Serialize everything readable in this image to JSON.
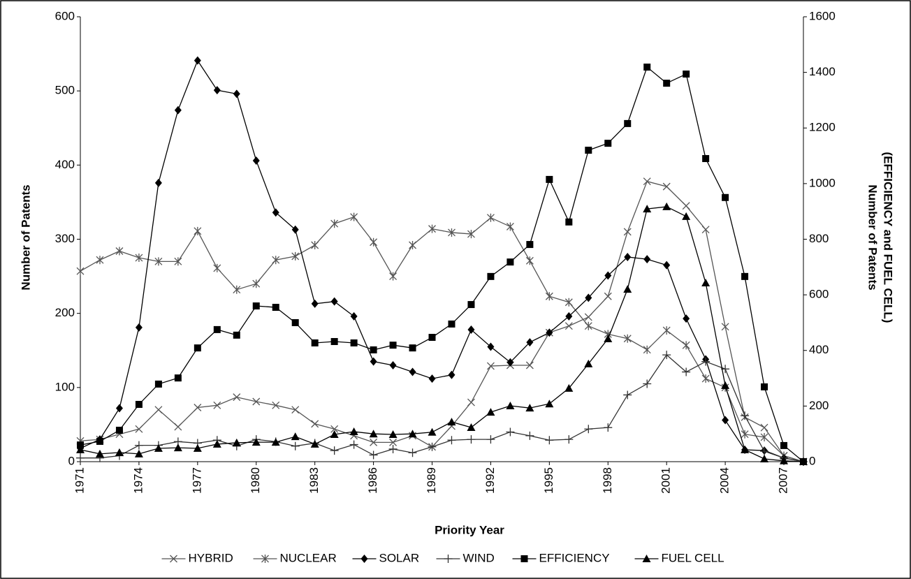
{
  "chart_data": {
    "type": "line",
    "xlabel": "Priority Year",
    "ylabel": "Number of Patents",
    "y2label": [
      "Number of Patents",
      "(EFFICIENCY and FUEL CELL)"
    ],
    "x": [
      1971,
      1972,
      1973,
      1974,
      1975,
      1976,
      1977,
      1978,
      1979,
      1980,
      1981,
      1982,
      1983,
      1984,
      1985,
      1986,
      1987,
      1988,
      1989,
      1990,
      1991,
      1992,
      1993,
      1994,
      1995,
      1996,
      1997,
      1998,
      1999,
      2000,
      2001,
      2002,
      2003,
      2004,
      2005,
      2006,
      2007,
      2008
    ],
    "xlim": [
      1971,
      2008
    ],
    "xticks": [
      1971,
      1974,
      1977,
      1980,
      1983,
      1986,
      1989,
      1992,
      1995,
      1998,
      2001,
      2004,
      2007
    ],
    "ylim": [
      0,
      600
    ],
    "yticks": [
      0,
      100,
      200,
      300,
      400,
      500,
      600
    ],
    "y2lim": [
      0,
      1600
    ],
    "y2ticks": [
      0,
      200,
      400,
      600,
      800,
      1000,
      1200,
      1400,
      1600
    ],
    "legend": "bottom",
    "series": [
      {
        "name": "HYBRID",
        "color": "#555555",
        "marker": "x",
        "values": [
          28,
          30,
          37,
          44,
          70,
          47,
          73,
          76,
          87,
          81,
          76,
          70,
          51,
          44,
          35,
          26,
          26,
          35,
          20,
          48,
          80,
          129,
          130,
          130,
          174,
          183,
          195,
          223,
          310,
          378,
          371,
          345,
          313,
          182,
          60,
          46,
          8,
          0
        ]
      },
      {
        "name": "NUCLEAR",
        "color": "#555555",
        "marker": "star",
        "values": [
          257,
          272,
          284,
          275,
          270,
          270,
          311,
          261,
          232,
          240,
          272,
          277,
          292,
          321,
          330,
          296,
          250,
          292,
          314,
          309,
          307,
          329,
          317,
          271,
          223,
          215,
          183,
          172,
          166,
          151,
          177,
          157,
          112,
          100,
          37,
          33,
          8,
          0
        ]
      },
      {
        "name": "SOLAR",
        "color": "#000000",
        "marker": "diamond",
        "values": [
          18,
          30,
          72,
          181,
          376,
          474,
          541,
          501,
          496,
          406,
          336,
          313,
          213,
          216,
          196,
          135,
          130,
          121,
          112,
          117,
          178,
          155,
          134,
          161,
          174,
          196,
          221,
          251,
          276,
          273,
          265,
          193,
          138,
          56,
          16,
          15,
          5,
          0
        ]
      },
      {
        "name": "WIND",
        "color": "#333333",
        "marker": "plus",
        "values": [
          5,
          5,
          8,
          22,
          22,
          27,
          25,
          29,
          21,
          30,
          27,
          21,
          25,
          15,
          23,
          9,
          17,
          12,
          20,
          29,
          30,
          30,
          40,
          35,
          29,
          30,
          44,
          46,
          90,
          105,
          144,
          121,
          135,
          125,
          62,
          14,
          5,
          0
        ]
      },
      {
        "name": "EFFICIENCY",
        "color": "#000000",
        "marker": "square",
        "axis": "y2",
        "values": [
          60,
          73,
          113,
          206,
          279,
          301,
          409,
          475,
          455,
          560,
          555,
          500,
          427,
          432,
          427,
          402,
          419,
          409,
          447,
          495,
          565,
          666,
          718,
          781,
          1015,
          862,
          1120,
          1145,
          1216,
          1419,
          1361,
          1394,
          1090,
          950,
          666,
          269,
          58,
          0
        ]
      },
      {
        "name": "FUEL CELL",
        "color": "#000000",
        "marker": "triangle",
        "axis": "y2",
        "values": [
          43,
          28,
          33,
          28,
          48,
          50,
          48,
          63,
          68,
          70,
          70,
          90,
          63,
          98,
          108,
          100,
          98,
          100,
          106,
          143,
          123,
          178,
          201,
          193,
          208,
          264,
          352,
          442,
          620,
          909,
          917,
          882,
          643,
          274,
          43,
          10,
          3,
          0
        ]
      }
    ]
  }
}
